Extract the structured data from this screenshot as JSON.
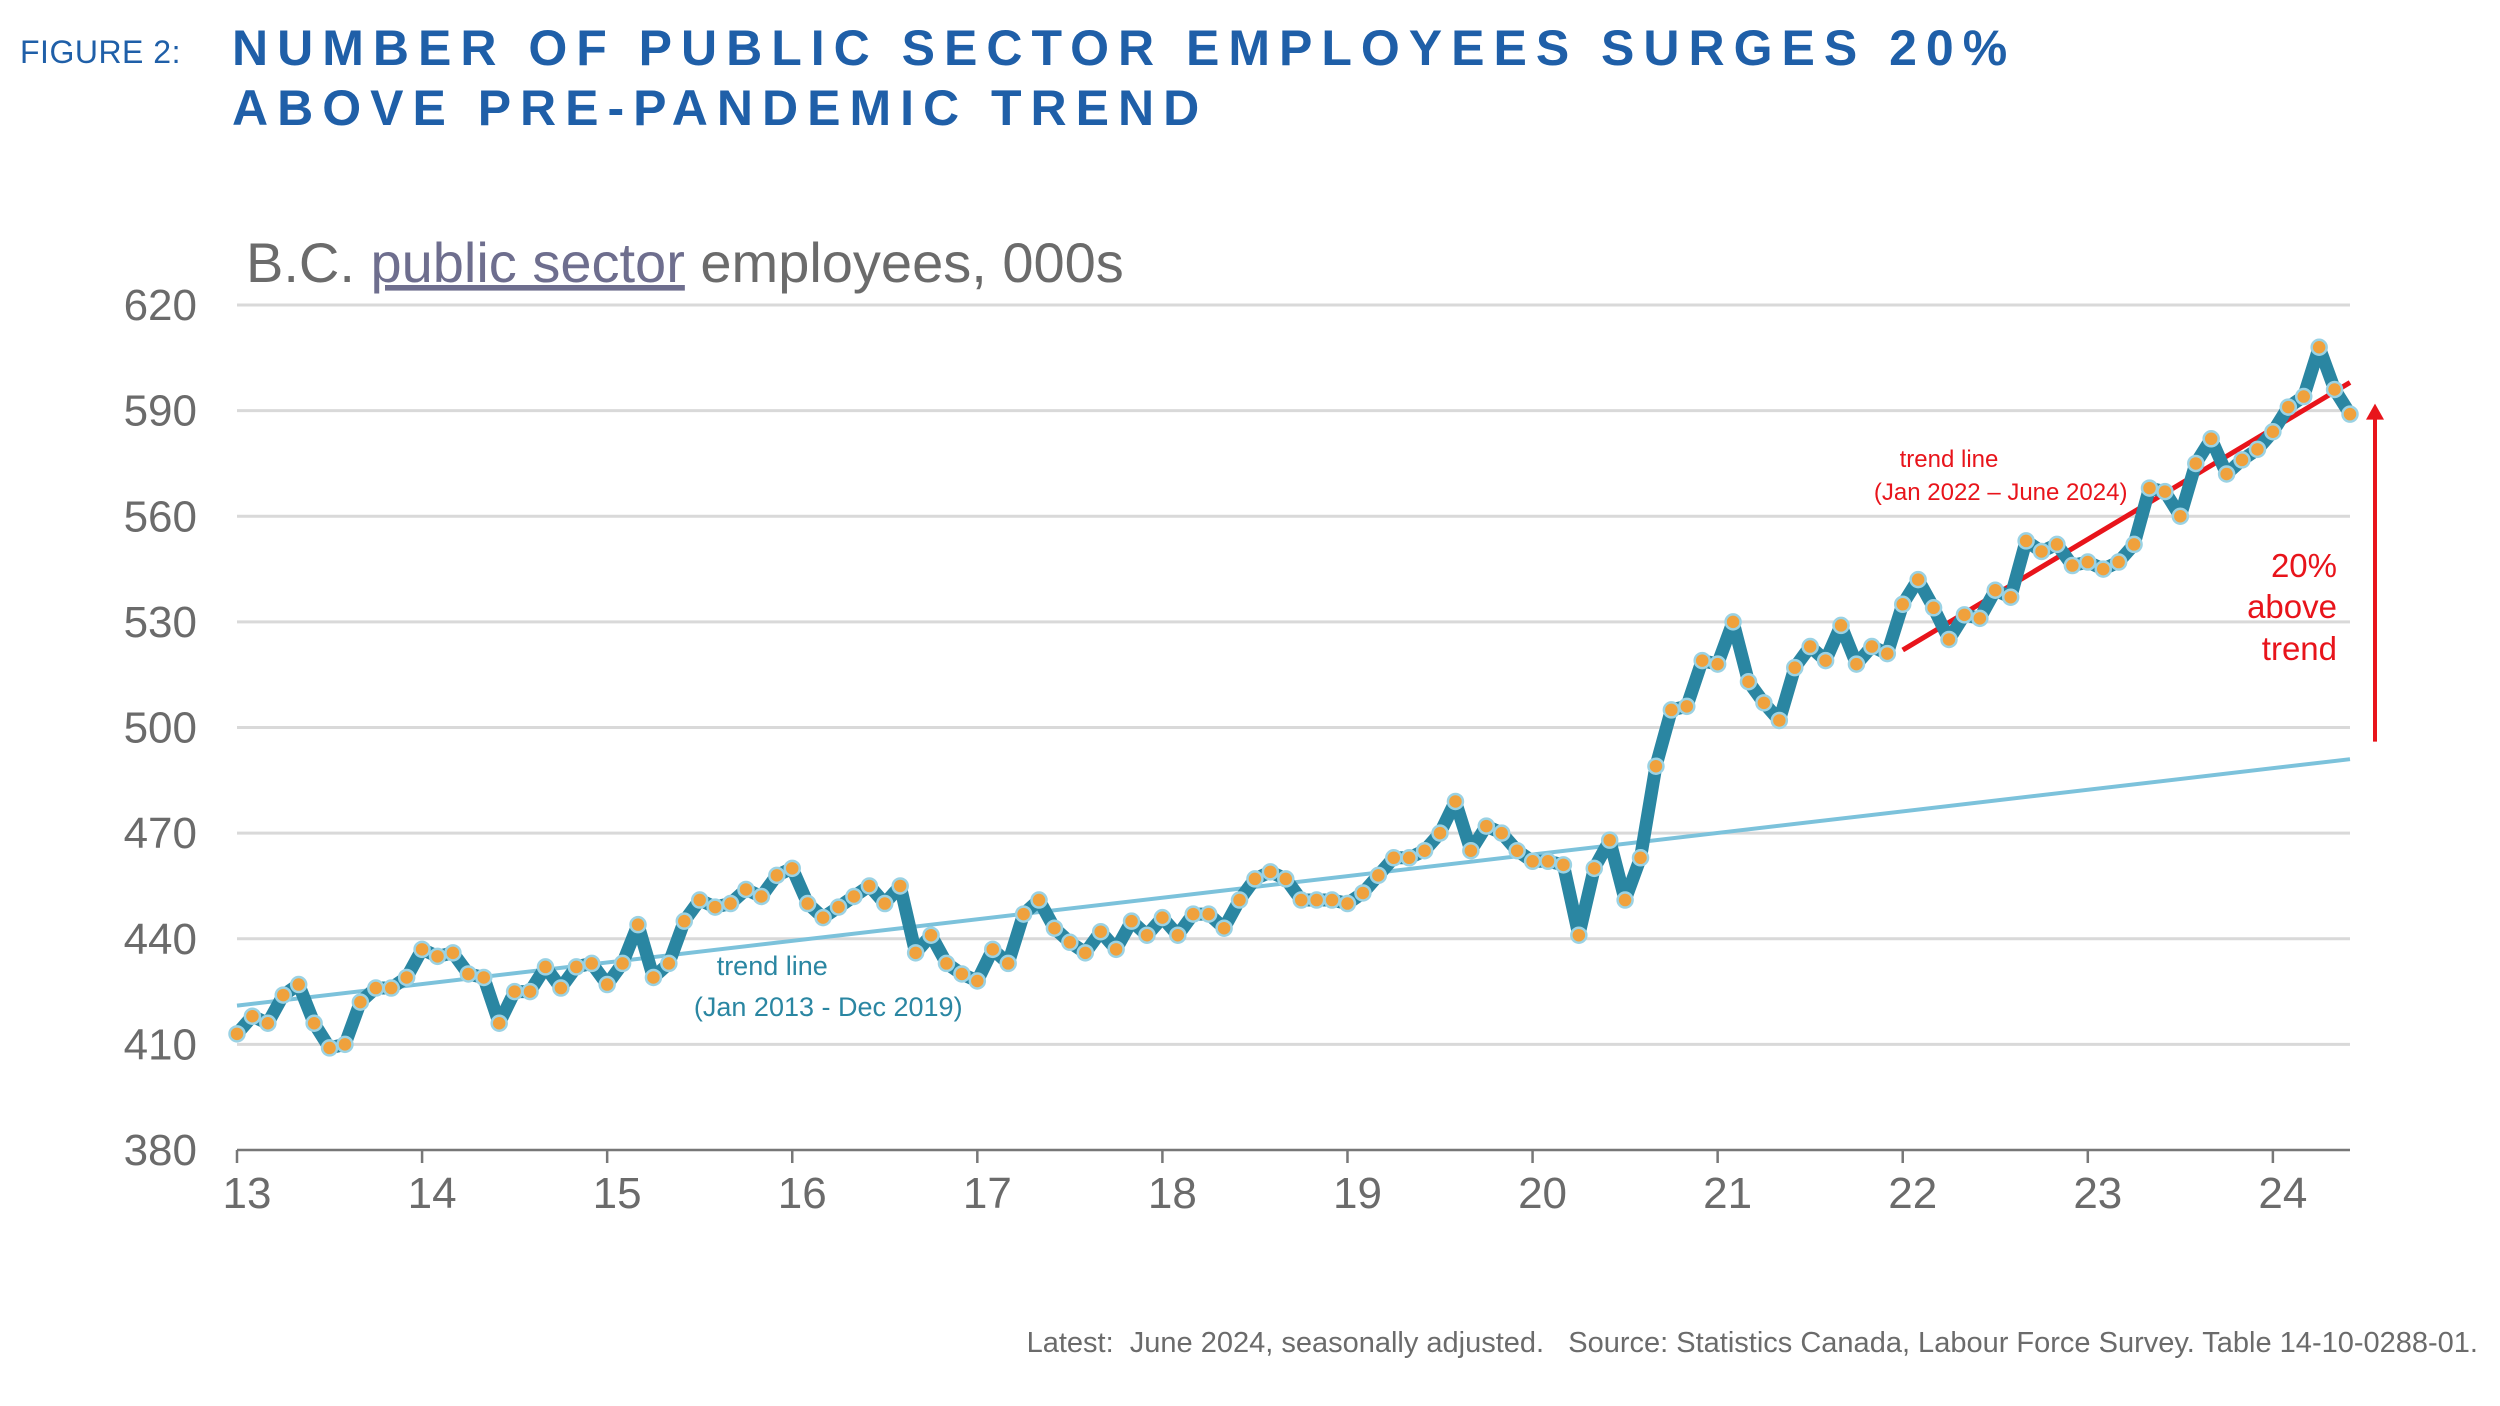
{
  "header": {
    "figure_label": "FIGURE 2:",
    "title_line1": "NUMBER OF PUBLIC SECTOR EMPLOYEES SURGES 20%",
    "title_line2": "ABOVE PRE-PANDEMIC TREND"
  },
  "footnote": "Latest:  June 2024, seasonally adjusted.   Source: Statistics Canada, Labour Force Survey. Table 14-10-0288-01.",
  "colors": {
    "series_line": "#2a86a2",
    "marker_fill": "#f0a13c",
    "trend_pre": "#7cc2db",
    "trend_post": "#e8141b",
    "grid": "#d9d9d9",
    "axis_text": "#6b6b6b",
    "title": "#1f5fa8"
  },
  "chart_data": {
    "type": "line",
    "subtitle_parts": [
      "B.C. ",
      "public sector",
      " employees, 000s"
    ],
    "x_ticks": [
      "13",
      "14",
      "15",
      "16",
      "17",
      "18",
      "19",
      "20",
      "21",
      "22",
      "23",
      "24"
    ],
    "x_start": "2013-01",
    "x_end": "2024-06",
    "ylim": [
      380,
      620
    ],
    "y_ticks": [
      380,
      410,
      440,
      470,
      500,
      530,
      560,
      590,
      620
    ],
    "grid": true,
    "series": [
      {
        "values": [
          413,
          418,
          416,
          424,
          427,
          416,
          409,
          410,
          422,
          426,
          426,
          429,
          437,
          435,
          436,
          430,
          429,
          416,
          425,
          425,
          432,
          426,
          432,
          433,
          427,
          433,
          444,
          429,
          433,
          445,
          451,
          449,
          450,
          454,
          452,
          458,
          460,
          450,
          446,
          449,
          452,
          455,
          450,
          455,
          436,
          441,
          433,
          430,
          428,
          437,
          433,
          447,
          451,
          443,
          439,
          436,
          442,
          437,
          445,
          441,
          446,
          441,
          447,
          447,
          443,
          451,
          457,
          459,
          457,
          451,
          451,
          451,
          450,
          453,
          458,
          463,
          463,
          465,
          470,
          479,
          465,
          472,
          470,
          465,
          462,
          462,
          461,
          441,
          460,
          468,
          451,
          463,
          489,
          505,
          506,
          519,
          518,
          530,
          513,
          507,
          502,
          517,
          523,
          519,
          529,
          518,
          523,
          521,
          535,
          542,
          534,
          525,
          532,
          531,
          539,
          537,
          553,
          550,
          552,
          546,
          547,
          545,
          547,
          552,
          568,
          567,
          560,
          575,
          582,
          572,
          576,
          579,
          584,
          591,
          594,
          608,
          596,
          589
        ]
      }
    ],
    "trend_pre": {
      "from": "2013-01",
      "to": "2024-06",
      "y_start": 421,
      "y_end": 491,
      "label_line1": "trend line",
      "label_line2": "(Jan 2013 - Dec 2019)"
    },
    "trend_post": {
      "from": "2022-01",
      "to": "2024-06",
      "y_start": 522,
      "y_end": 598,
      "label_line1": "trend line",
      "label_line2": "(Jan 2022 – June 2024)"
    },
    "annotation": {
      "line1": "20%",
      "line2": "above",
      "line3": "trend",
      "arrow_from": 496,
      "arrow_to": 592
    }
  }
}
